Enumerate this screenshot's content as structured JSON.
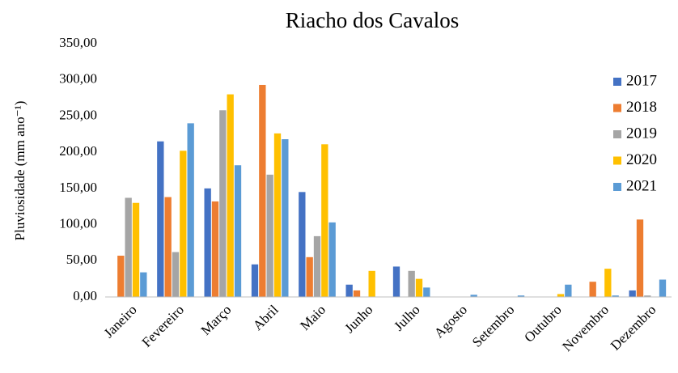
{
  "chart_data": {
    "type": "bar",
    "title": "Riacho dos Cavalos",
    "y_label": "Pluviosidade (mm ano⁻¹)",
    "categories": [
      "Janeiro",
      "Fevereiro",
      "Março",
      "Abril",
      "Maio",
      "Junho",
      "Julho",
      "Agosto",
      "Setembro",
      "Outubro",
      "Novembro",
      "Dezembro"
    ],
    "series": [
      {
        "name": "2017",
        "color": "#4472c4",
        "values": [
          0,
          215,
          150,
          45,
          145,
          17,
          42,
          0,
          0,
          0,
          0,
          9
        ]
      },
      {
        "name": "2018",
        "color": "#ed7d31",
        "values": [
          57,
          138,
          132,
          293,
          55,
          9,
          0,
          0,
          0,
          0,
          21,
          107
        ]
      },
      {
        "name": "2019",
        "color": "#a5a5a5",
        "values": [
          137,
          62,
          258,
          169,
          84,
          0,
          36,
          0,
          0,
          0,
          0,
          2
        ]
      },
      {
        "name": "2020",
        "color": "#ffc000",
        "values": [
          130,
          202,
          280,
          226,
          211,
          36,
          25,
          0,
          0,
          4,
          39,
          0
        ]
      },
      {
        "name": "2021",
        "color": "#5b9bd5",
        "values": [
          34,
          240,
          182,
          218,
          103,
          0,
          13,
          3,
          2,
          17,
          2,
          24
        ]
      }
    ],
    "ylim": [
      0,
      350
    ],
    "yticks": [
      {
        "value": 0,
        "label": "0,00"
      },
      {
        "value": 50,
        "label": "50,00"
      },
      {
        "value": 100,
        "label": "100,00"
      },
      {
        "value": 150,
        "label": "150,00"
      },
      {
        "value": 200,
        "label": "200,00"
      },
      {
        "value": 250,
        "label": "250,00"
      },
      {
        "value": 300,
        "label": "300,00"
      },
      {
        "value": 350,
        "label": "350,00"
      }
    ],
    "grid": false,
    "legend": "right"
  }
}
